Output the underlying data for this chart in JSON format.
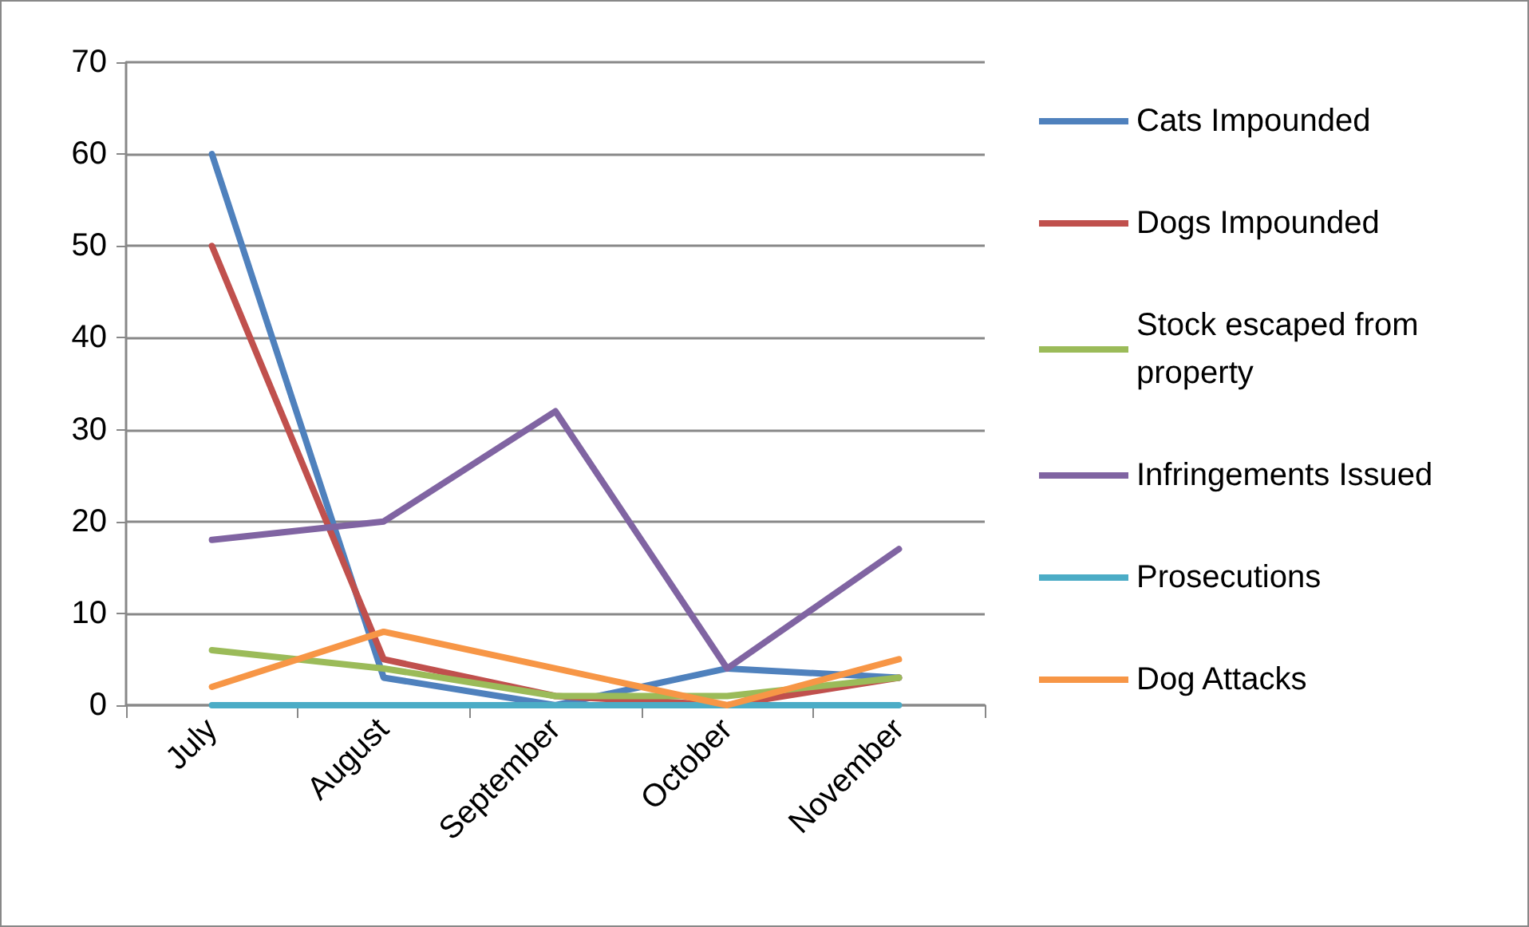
{
  "chart_data": {
    "type": "line",
    "categories": [
      "July",
      "August",
      "September",
      "October",
      "November"
    ],
    "series": [
      {
        "name": "Cats Impounded",
        "color": "#4f81bd",
        "values": [
          60,
          3,
          0,
          4,
          3
        ]
      },
      {
        "name": "Dogs Impounded",
        "color": "#c0504d",
        "values": [
          50,
          5,
          1,
          0,
          3
        ]
      },
      {
        "name": "Stock escaped from property",
        "color": "#9bbb59",
        "values": [
          6,
          4,
          1,
          1,
          3
        ]
      },
      {
        "name": "Infringements Issued",
        "color": "#8064a2",
        "values": [
          18,
          20,
          32,
          4,
          17
        ]
      },
      {
        "name": "Prosecutions",
        "color": "#4bacc6",
        "values": [
          0,
          0,
          0,
          0,
          0
        ]
      },
      {
        "name": "Dog Attacks",
        "color": "#f79646",
        "values": [
          2,
          8,
          4,
          0,
          5
        ]
      }
    ],
    "ylim": [
      0,
      70
    ],
    "yticks": [
      0,
      10,
      20,
      30,
      40,
      50,
      60,
      70
    ],
    "grid": "y",
    "legend": "right",
    "marker": "none"
  }
}
